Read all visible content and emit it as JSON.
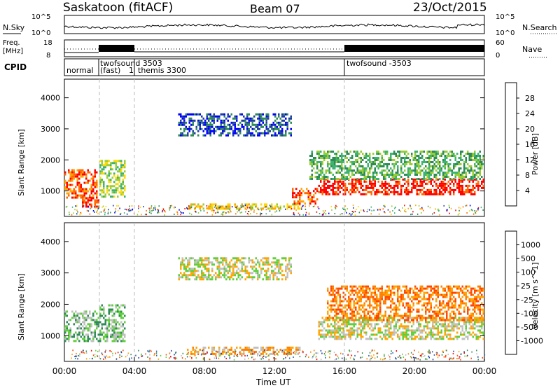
{
  "header": {
    "title": "Saskatoon (fitACF)",
    "beam": "Beam 07",
    "date": "23/Oct/2015"
  },
  "noise_panel": {
    "left_label": "N.Sky",
    "right_label": "N.Search",
    "left_ticks": [
      "10^5",
      "10^0"
    ],
    "right_ticks": [
      "10^5",
      "10^0"
    ]
  },
  "freq_panel": {
    "left_label_1": "Freq.",
    "left_label_2": "[MHz]",
    "right_label": "Nave",
    "left_ticks": [
      "18",
      "8"
    ],
    "right_ticks": [
      "60",
      "0"
    ]
  },
  "cpid_panel": {
    "label": "CPID",
    "modes": [
      {
        "name": "normal",
        "start": 0.0
      },
      {
        "name": "twofsound 3503",
        "start": 2.0
      },
      {
        "name": "(fast)",
        "start": 2.0
      },
      {
        "name": "1",
        "start": 4.0
      },
      {
        "name": "themis 3300",
        "start": 4.1
      },
      {
        "name": "twofsound -3503",
        "start": 16.0
      }
    ]
  },
  "x_axis": {
    "label": "Time UT",
    "ticks": [
      "00:00",
      "04:00",
      "08:00",
      "12:00",
      "16:00",
      "20:00",
      "00:00"
    ]
  },
  "colors": {
    "power_scale": [
      "#0000ff",
      "#1f3fa0",
      "#2e8b57",
      "#3cb371",
      "#9acd32",
      "#ffd700",
      "#ffa500",
      "#ff6a00",
      "#ff0000"
    ],
    "velocity_scale": [
      "#1e3fa8",
      "#2b5ea8",
      "#2e8b57",
      "#5fcf3a",
      "#c0c0c0",
      "#ffa500",
      "#ff7f00",
      "#ff4500",
      "#ff0000"
    ]
  },
  "chart_data": [
    {
      "type": "heatmap",
      "name": "power",
      "ylabel": "Slant Range [km]",
      "xlabel": "Time UT",
      "xlim": [
        0,
        24
      ],
      "ylim": [
        180,
        4600
      ],
      "yticks": [
        "1000",
        "2000",
        "3000",
        "4000"
      ],
      "colorbar_label": "Power [dB]",
      "colorbar_ticks": [
        "4",
        "8",
        "12",
        "16",
        "20",
        "24",
        "28"
      ],
      "regions": [
        {
          "t0": 0.0,
          "t1": 1.9,
          "r0": 800,
          "r1": 1700,
          "level": 7
        },
        {
          "t0": 1.0,
          "t1": 2.0,
          "r0": 500,
          "r1": 800,
          "level": 8
        },
        {
          "t0": 2.0,
          "t1": 3.5,
          "r0": 800,
          "r1": 2000,
          "level": 4
        },
        {
          "t0": 6.5,
          "t1": 13.0,
          "r0": 2800,
          "r1": 3500,
          "level": 1
        },
        {
          "t0": 7.0,
          "t1": 13.5,
          "r0": 400,
          "r1": 600,
          "level": 5
        },
        {
          "t0": 13.0,
          "t1": 14.5,
          "r0": 600,
          "r1": 1100,
          "level": 7
        },
        {
          "t0": 14.5,
          "t1": 24.0,
          "r0": 900,
          "r1": 1400,
          "level": 8
        },
        {
          "t0": 14.0,
          "t1": 24.0,
          "r0": 1400,
          "r1": 2300,
          "level": 3
        }
      ]
    },
    {
      "type": "heatmap",
      "name": "velocity",
      "ylabel": "Slant Range [km]",
      "xlabel": "Time UT",
      "xlim": [
        0,
        24
      ],
      "ylim": [
        180,
        4600
      ],
      "yticks": [
        "1000",
        "2000",
        "3000",
        "4000"
      ],
      "colorbar_label": "Velocity [m s^-1]",
      "colorbar_ticks": [
        "1000",
        "500",
        "100",
        "25",
        "-25",
        "-100",
        "-500",
        "-1000"
      ],
      "regions": [
        {
          "t0": 0.0,
          "t1": 2.0,
          "r0": 800,
          "r1": 1800,
          "level": 3
        },
        {
          "t0": 2.0,
          "t1": 3.5,
          "r0": 800,
          "r1": 2000,
          "level": 3
        },
        {
          "t0": 6.5,
          "t1": 13.0,
          "r0": 2800,
          "r1": 3500,
          "level": 4
        },
        {
          "t0": 7.0,
          "t1": 13.5,
          "r0": 400,
          "r1": 650,
          "level": 5
        },
        {
          "t0": 14.5,
          "t1": 24.0,
          "r0": 900,
          "r1": 1600,
          "level": 4
        },
        {
          "t0": 15.0,
          "t1": 24.0,
          "r0": 1500,
          "r1": 2600,
          "level": 6
        }
      ]
    }
  ]
}
